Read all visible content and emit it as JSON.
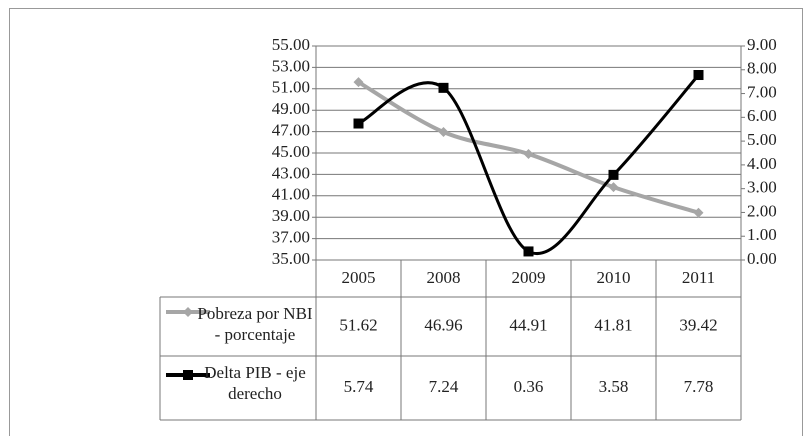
{
  "chart_data": {
    "type": "line",
    "categories": [
      "2005",
      "2008",
      "2009",
      "2010",
      "2011"
    ],
    "series": [
      {
        "name": "Pobreza por NBI - porcentaje",
        "color": "#a6a6a6",
        "marker": "diamond",
        "values": [
          51.62,
          46.96,
          44.91,
          41.81,
          39.42
        ]
      },
      {
        "name": "Delta PIB - eje derecho",
        "color": "#000000",
        "marker": "square",
        "axis": "y2",
        "values": [
          5.74,
          7.24,
          0.36,
          3.58,
          7.78
        ]
      }
    ],
    "ylim": [
      35,
      55
    ],
    "yticks": [
      {
        "value": 35,
        "label": "35.00"
      },
      {
        "value": 37,
        "label": "37.00"
      },
      {
        "value": 39,
        "label": "39.00"
      },
      {
        "value": 41,
        "label": "41.00"
      },
      {
        "value": 43,
        "label": "43.00"
      },
      {
        "value": 45,
        "label": "45.00"
      },
      {
        "value": 47,
        "label": "47.00"
      },
      {
        "value": 49,
        "label": "49.00"
      },
      {
        "value": 51,
        "label": "51.00"
      },
      {
        "value": 53,
        "label": "53.00"
      },
      {
        "value": 55,
        "label": "55.00"
      }
    ],
    "y2lim": [
      0,
      9
    ],
    "y2ticks": [
      {
        "value": 0,
        "label": "0.00"
      },
      {
        "value": 1,
        "label": "1.00"
      },
      {
        "value": 2,
        "label": "2.00"
      },
      {
        "value": 3,
        "label": "3.00"
      },
      {
        "value": 4,
        "label": "4.00"
      },
      {
        "value": 5,
        "label": "5.00"
      },
      {
        "value": 6,
        "label": "6.00"
      },
      {
        "value": 7,
        "label": "7.00"
      },
      {
        "value": 8,
        "label": "8.00"
      },
      {
        "value": 9,
        "label": "9.00"
      }
    ],
    "grid": true,
    "smooth": true,
    "data_table": true
  }
}
